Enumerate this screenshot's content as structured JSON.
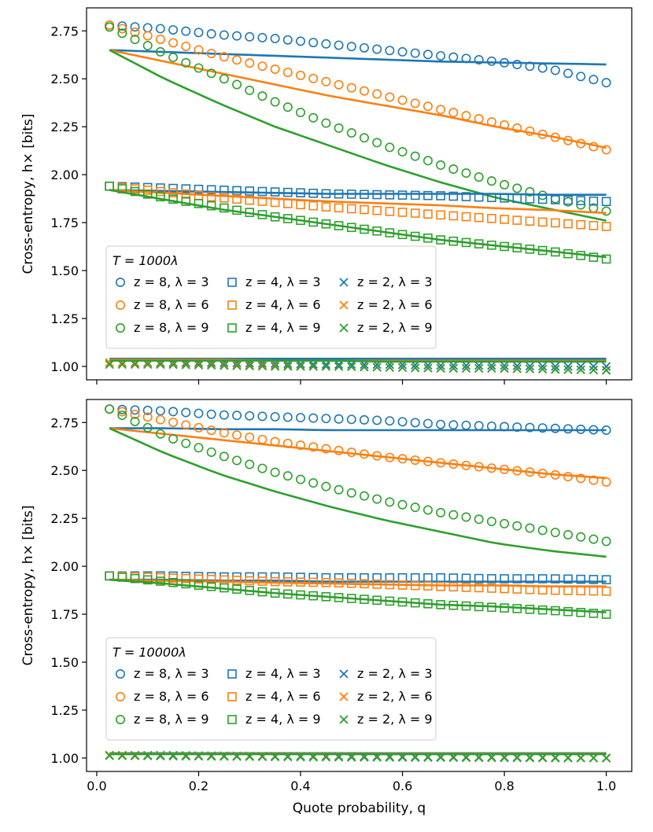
{
  "chart_data": [
    {
      "type": "scatter",
      "panel": "top",
      "legend_title": "T = 1000λ",
      "xlabel": "",
      "ylabel": "Cross-entropy, h× [bits]",
      "xlim": [
        -0.02,
        1.05
      ],
      "ylim": [
        0.93,
        2.87
      ],
      "xticks": [
        0.0,
        0.2,
        0.4,
        0.6,
        0.8,
        1.0
      ],
      "xtick_labels": [
        "",
        "",
        "",
        "",
        "",
        ""
      ],
      "yticks": [
        1.0,
        1.25,
        1.5,
        1.75,
        2.0,
        2.25,
        2.5,
        2.75
      ],
      "ytick_labels": [
        "1.00",
        "1.25",
        "1.50",
        "1.75",
        "2.00",
        "2.25",
        "2.50",
        "2.75"
      ],
      "legend_position": "lower-left",
      "series": [
        {
          "name": "z = 8, λ = 3",
          "label": "z = 8, λ = 3",
          "color": "#1f77b4",
          "marker": "circle",
          "q_start": 0.025,
          "q_end": 1.0,
          "n": 40,
          "values": [
            2.78,
            2.76,
            2.73,
            2.71,
            2.68,
            2.65,
            2.62,
            2.59,
            2.55,
            2.48
          ],
          "theory": [
            2.65,
            2.64,
            2.63,
            2.62,
            2.61,
            2.6,
            2.59,
            2.585,
            2.58,
            2.575
          ]
        },
        {
          "name": "z = 8, λ = 6",
          "label": "z = 8, λ = 6",
          "color": "#ff7f0e",
          "marker": "circle",
          "q_start": 0.025,
          "q_end": 1.0,
          "n": 40,
          "values": [
            2.78,
            2.7,
            2.62,
            2.55,
            2.48,
            2.41,
            2.34,
            2.27,
            2.2,
            2.13
          ],
          "theory": [
            2.65,
            2.59,
            2.53,
            2.47,
            2.41,
            2.36,
            2.31,
            2.25,
            2.2,
            2.14
          ]
        },
        {
          "name": "z = 8, λ = 9",
          "label": "z = 8, λ = 9",
          "color": "#2ca02c",
          "marker": "circle",
          "q_start": 0.025,
          "q_end": 1.0,
          "n": 40,
          "values": [
            2.77,
            2.63,
            2.51,
            2.38,
            2.26,
            2.15,
            2.05,
            1.96,
            1.88,
            1.81
          ],
          "theory": [
            2.65,
            2.5,
            2.37,
            2.25,
            2.15,
            2.05,
            1.96,
            1.88,
            1.82,
            1.76
          ]
        },
        {
          "name": "z = 4, λ = 3",
          "label": "z = 4, λ = 3",
          "color": "#1f77b4",
          "marker": "square",
          "q_start": 0.025,
          "q_end": 1.0,
          "n": 40,
          "values": [
            1.94,
            1.93,
            1.92,
            1.91,
            1.9,
            1.895,
            1.89,
            1.88,
            1.87,
            1.86
          ],
          "theory": [
            1.92,
            1.915,
            1.91,
            1.905,
            1.9,
            1.9,
            1.9,
            1.9,
            1.895,
            1.895
          ]
        },
        {
          "name": "z = 4, λ = 6",
          "label": "z = 4, λ = 6",
          "color": "#ff7f0e",
          "marker": "square",
          "q_start": 0.025,
          "q_end": 1.0,
          "n": 40,
          "values": [
            1.94,
            1.91,
            1.88,
            1.855,
            1.83,
            1.81,
            1.79,
            1.77,
            1.75,
            1.73
          ],
          "theory": [
            1.92,
            1.905,
            1.89,
            1.875,
            1.86,
            1.85,
            1.84,
            1.825,
            1.815,
            1.8
          ]
        },
        {
          "name": "z = 4, λ = 9",
          "label": "z = 4, λ = 9",
          "color": "#2ca02c",
          "marker": "square",
          "q_start": 0.025,
          "q_end": 1.0,
          "n": 40,
          "values": [
            1.94,
            1.88,
            1.83,
            1.78,
            1.74,
            1.7,
            1.66,
            1.63,
            1.6,
            1.56
          ],
          "theory": [
            1.92,
            1.87,
            1.82,
            1.78,
            1.74,
            1.7,
            1.66,
            1.63,
            1.6,
            1.57
          ]
        },
        {
          "name": "z = 2, λ = 3",
          "label": "z = 2, λ = 3",
          "color": "#1f77b4",
          "marker": "x",
          "q_start": 0.025,
          "q_end": 1.0,
          "n": 40,
          "values": [
            1.02,
            1.02,
            1.02,
            1.015,
            1.01,
            1.01,
            1.005,
            1.005,
            1.0,
            1.0
          ],
          "theory": [
            1.04,
            1.04,
            1.04,
            1.04,
            1.04,
            1.04,
            1.04,
            1.04,
            1.04,
            1.04
          ]
        },
        {
          "name": "z = 2, λ = 6",
          "label": "z = 2, λ = 6",
          "color": "#ff7f0e",
          "marker": "x",
          "q_start": 0.025,
          "q_end": 1.0,
          "n": 40,
          "values": [
            1.02,
            1.015,
            1.01,
            1.005,
            1.0,
            0.995,
            0.99,
            0.99,
            0.985,
            0.98
          ],
          "theory": [
            1.035,
            1.035,
            1.035,
            1.03,
            1.03,
            1.03,
            1.03,
            1.03,
            1.03,
            1.03
          ]
        },
        {
          "name": "z = 2, λ = 9",
          "label": "z = 2, λ = 9",
          "color": "#2ca02c",
          "marker": "x",
          "q_start": 0.025,
          "q_end": 1.0,
          "n": 40,
          "values": [
            1.01,
            1.01,
            1.005,
            1.0,
            1.0,
            0.995,
            0.99,
            0.99,
            0.985,
            0.98
          ],
          "theory": [
            1.03,
            1.03,
            1.03,
            1.03,
            1.03,
            1.025,
            1.025,
            1.025,
            1.025,
            1.025
          ]
        }
      ]
    },
    {
      "type": "scatter",
      "panel": "bottom",
      "legend_title": "T = 10000λ",
      "xlabel": "Quote probability, q",
      "ylabel": "Cross-entropy, h× [bits]",
      "xlim": [
        -0.02,
        1.05
      ],
      "ylim": [
        0.93,
        2.87
      ],
      "xticks": [
        0.0,
        0.2,
        0.4,
        0.6,
        0.8,
        1.0
      ],
      "xtick_labels": [
        "0.0",
        "0.2",
        "0.4",
        "0.6",
        "0.8",
        "1.0"
      ],
      "yticks": [
        1.0,
        1.25,
        1.5,
        1.75,
        2.0,
        2.25,
        2.5,
        2.75
      ],
      "ytick_labels": [
        "1.00",
        "1.25",
        "1.50",
        "1.75",
        "2.00",
        "2.25",
        "2.50",
        "2.75"
      ],
      "legend_position": "lower-left",
      "series": [
        {
          "name": "z = 8, λ = 3",
          "label": "z = 8, λ = 3",
          "color": "#1f77b4",
          "marker": "circle",
          "q_start": 0.025,
          "q_end": 1.0,
          "n": 40,
          "values": [
            2.82,
            2.81,
            2.79,
            2.78,
            2.77,
            2.76,
            2.74,
            2.73,
            2.72,
            2.71
          ],
          "theory": [
            2.72,
            2.72,
            2.715,
            2.715,
            2.71,
            2.71,
            2.71,
            2.71,
            2.71,
            2.71
          ]
        },
        {
          "name": "z = 8, λ = 6",
          "label": "z = 8, λ = 6",
          "color": "#ff7f0e",
          "marker": "circle",
          "q_start": 0.025,
          "q_end": 1.0,
          "n": 40,
          "values": [
            2.82,
            2.76,
            2.7,
            2.65,
            2.61,
            2.57,
            2.54,
            2.51,
            2.48,
            2.44
          ],
          "theory": [
            2.72,
            2.69,
            2.66,
            2.63,
            2.6,
            2.57,
            2.54,
            2.51,
            2.48,
            2.46
          ]
        },
        {
          "name": "z = 8, λ = 9",
          "label": "z = 8, λ = 9",
          "color": "#2ca02c",
          "marker": "circle",
          "q_start": 0.025,
          "q_end": 1.0,
          "n": 40,
          "values": [
            2.82,
            2.68,
            2.58,
            2.49,
            2.41,
            2.34,
            2.28,
            2.23,
            2.18,
            2.13
          ],
          "theory": [
            2.72,
            2.59,
            2.48,
            2.39,
            2.31,
            2.24,
            2.18,
            2.12,
            2.08,
            2.05
          ]
        },
        {
          "name": "z = 4, λ = 3",
          "label": "z = 4, λ = 3",
          "color": "#1f77b4",
          "marker": "square",
          "q_start": 0.025,
          "q_end": 1.0,
          "n": 40,
          "values": [
            1.95,
            1.95,
            1.945,
            1.945,
            1.94,
            1.94,
            1.94,
            1.935,
            1.935,
            1.93
          ],
          "theory": [
            1.93,
            1.93,
            1.925,
            1.925,
            1.92,
            1.92,
            1.92,
            1.92,
            1.92,
            1.92
          ]
        },
        {
          "name": "z = 4, λ = 6",
          "label": "z = 4, λ = 6",
          "color": "#ff7f0e",
          "marker": "square",
          "q_start": 0.025,
          "q_end": 1.0,
          "n": 40,
          "values": [
            1.95,
            1.94,
            1.93,
            1.92,
            1.915,
            1.905,
            1.895,
            1.885,
            1.875,
            1.87
          ],
          "theory": [
            1.93,
            1.925,
            1.92,
            1.915,
            1.91,
            1.905,
            1.9,
            1.9,
            1.895,
            1.895
          ]
        },
        {
          "name": "z = 4, λ = 9",
          "label": "z = 4, λ = 9",
          "color": "#2ca02c",
          "marker": "square",
          "q_start": 0.025,
          "q_end": 1.0,
          "n": 40,
          "values": [
            1.95,
            1.92,
            1.89,
            1.86,
            1.84,
            1.82,
            1.8,
            1.785,
            1.77,
            1.75
          ],
          "theory": [
            1.93,
            1.91,
            1.885,
            1.86,
            1.84,
            1.82,
            1.8,
            1.79,
            1.775,
            1.76
          ]
        },
        {
          "name": "z = 2, λ = 3",
          "label": "z = 2, λ = 3",
          "color": "#1f77b4",
          "marker": "x",
          "q_start": 0.025,
          "q_end": 1.0,
          "n": 40,
          "values": [
            1.015,
            1.015,
            1.012,
            1.01,
            1.01,
            1.008,
            1.006,
            1.005,
            1.003,
            1.0
          ],
          "theory": [
            1.025,
            1.025,
            1.025,
            1.025,
            1.025,
            1.025,
            1.025,
            1.025,
            1.025,
            1.025
          ]
        },
        {
          "name": "z = 2, λ = 6",
          "label": "z = 2, λ = 6",
          "color": "#ff7f0e",
          "marker": "x",
          "q_start": 0.025,
          "q_end": 1.0,
          "n": 40,
          "values": [
            1.015,
            1.012,
            1.01,
            1.008,
            1.006,
            1.004,
            1.003,
            1.002,
            1.001,
            1.0
          ],
          "theory": [
            1.022,
            1.022,
            1.022,
            1.022,
            1.022,
            1.022,
            1.022,
            1.022,
            1.022,
            1.022
          ]
        },
        {
          "name": "z = 2, λ = 9",
          "label": "z = 2, λ = 9",
          "color": "#2ca02c",
          "marker": "x",
          "q_start": 0.025,
          "q_end": 1.0,
          "n": 40,
          "values": [
            1.012,
            1.01,
            1.008,
            1.006,
            1.004,
            1.003,
            1.002,
            1.001,
            1.0,
            1.0
          ],
          "theory": [
            1.02,
            1.02,
            1.02,
            1.02,
            1.02,
            1.02,
            1.02,
            1.02,
            1.02,
            1.02
          ]
        }
      ]
    }
  ]
}
